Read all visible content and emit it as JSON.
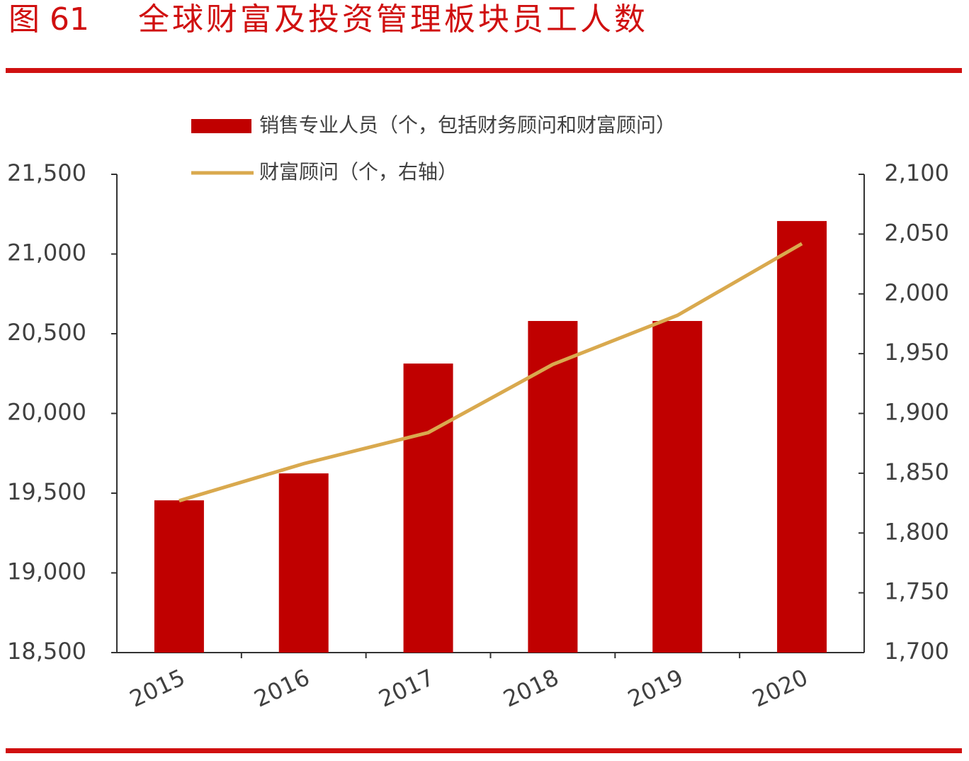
{
  "chart_data": {
    "type": "bar_line",
    "figure_number": "图 61",
    "title": "全球财富及投资管理板块员工人数",
    "categories": [
      "2015",
      "2016",
      "2017",
      "2018",
      "2019",
      "2020"
    ],
    "series": [
      {
        "name": "销售专业人员（个，包括财务顾问和财富顾问）",
        "type": "bar",
        "color": "#c00000",
        "values": [
          19455,
          19624,
          20313,
          20580,
          20580,
          21207
        ]
      },
      {
        "name": "财富顾问（个，右轴）",
        "type": "line",
        "axis": "y2",
        "color": "#d9a94e",
        "values": [
          1827,
          1858,
          1884,
          1941,
          1982,
          2042
        ]
      }
    ],
    "ylim": [
      18500,
      21500
    ],
    "yticks": [
      {
        "value": 18500,
        "label": "18,500"
      },
      {
        "value": 19000,
        "label": "19,000"
      },
      {
        "value": 19500,
        "label": "19,500"
      },
      {
        "value": 20000,
        "label": "20,000"
      },
      {
        "value": 20500,
        "label": "20,500"
      },
      {
        "value": 21000,
        "label": "21,000"
      },
      {
        "value": 21500,
        "label": "21,500"
      }
    ],
    "y2lim": [
      1700,
      2100
    ],
    "y2ticks": [
      {
        "value": 1700,
        "label": "1,700"
      },
      {
        "value": 1750,
        "label": "1,750"
      },
      {
        "value": 1800,
        "label": "1,800"
      },
      {
        "value": 1850,
        "label": "1,850"
      },
      {
        "value": 1900,
        "label": "1,900"
      },
      {
        "value": 1950,
        "label": "1,950"
      },
      {
        "value": 2000,
        "label": "2,000"
      },
      {
        "value": 2050,
        "label": "2,050"
      },
      {
        "value": 2100,
        "label": "2,100"
      }
    ]
  }
}
